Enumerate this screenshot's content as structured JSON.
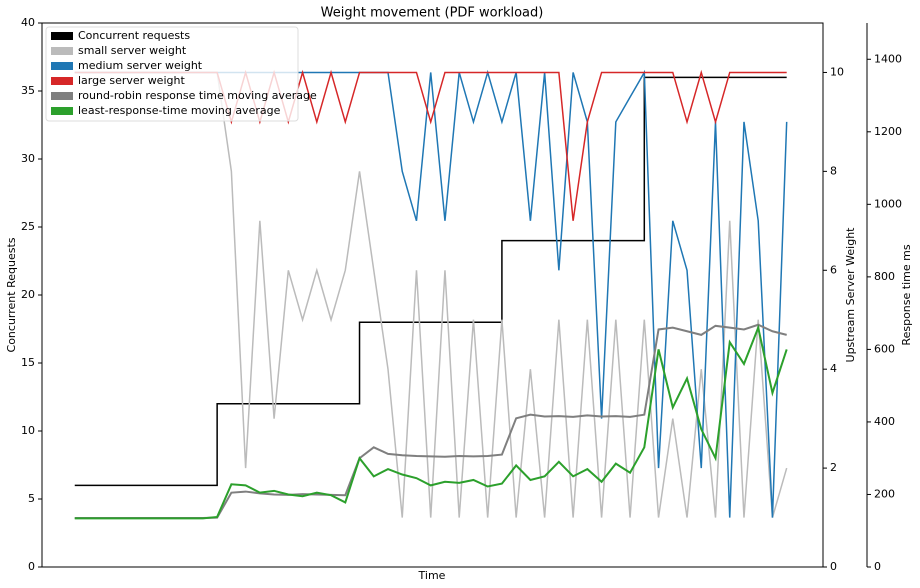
{
  "chart_data": {
    "type": "line",
    "title": "Weight movement (PDF workload)",
    "xlabel": "Time",
    "ylabel": "Concurrent Requests",
    "y2label": "Upstream Server Weight",
    "y3label": "Response time ms",
    "xlim": [
      -4.6,
      105.1
    ],
    "ylim": [
      0,
      40
    ],
    "yticks": [
      0,
      5,
      10,
      15,
      20,
      25,
      30,
      35,
      40
    ],
    "y2lim": [
      0,
      11
    ],
    "y2ticks": [
      0,
      2,
      4,
      6,
      8,
      10
    ],
    "y3lim": [
      0,
      1500
    ],
    "y3ticks": [
      0,
      200,
      400,
      600,
      800,
      1000,
      1200,
      1400
    ],
    "legend": "upper left",
    "x": [
      0,
      2,
      4,
      6,
      8,
      10,
      12,
      14,
      16,
      18,
      20,
      22,
      24,
      26,
      28,
      30,
      32,
      34,
      36,
      38,
      40,
      42,
      44,
      46,
      48,
      50,
      52,
      54,
      56,
      58,
      60,
      62,
      64,
      66,
      68,
      70,
      72,
      74,
      76,
      78,
      80,
      82,
      84,
      86,
      88,
      90,
      92,
      94,
      96,
      98,
      100
    ],
    "series": [
      {
        "name": "Concurrent requests",
        "color": "#000000",
        "axis": "y",
        "x": [
          0,
          20,
          20,
          40,
          40,
          60,
          60,
          80,
          80,
          100
        ],
        "values": [
          6,
          6,
          12,
          12,
          18,
          18,
          24,
          24,
          36,
          36
        ]
      },
      {
        "name": "small server weight",
        "color": "#bbbbbb",
        "axis": "y2",
        "values": [
          10,
          10,
          10,
          10,
          10,
          10,
          10,
          10,
          10,
          10,
          10,
          8,
          2,
          7,
          3,
          6,
          5,
          6,
          5,
          6,
          8,
          6,
          4,
          1,
          6,
          1,
          6,
          1,
          5,
          1,
          5,
          1,
          4,
          1,
          5,
          1,
          5,
          1,
          5,
          1,
          5,
          1,
          3,
          1,
          4,
          1,
          7,
          1,
          5,
          1,
          2
        ]
      },
      {
        "name": "medium server weight",
        "color": "#1f77b4",
        "axis": "y2",
        "values": [
          10,
          10,
          10,
          10,
          10,
          10,
          10,
          10,
          10,
          10,
          10,
          10,
          10,
          10,
          10,
          10,
          10,
          10,
          10,
          10,
          10,
          10,
          10,
          8,
          7,
          10,
          7,
          10,
          9,
          10,
          9,
          10,
          7,
          10,
          6,
          10,
          9,
          3,
          9,
          9.5,
          10,
          2,
          7,
          6,
          2,
          9,
          1,
          9,
          7,
          1,
          9
        ]
      },
      {
        "name": "large server weight",
        "color": "#d62728",
        "axis": "y2",
        "values": [
          10,
          10,
          10,
          10,
          10,
          10,
          10,
          10,
          10,
          10,
          10,
          9,
          10,
          9,
          10,
          9,
          10,
          9,
          10,
          9,
          10,
          10,
          10,
          10,
          10,
          9,
          10,
          10,
          10,
          10,
          10,
          10,
          10,
          10,
          10,
          7,
          9,
          10,
          10,
          10,
          10,
          10,
          10,
          9,
          10,
          9,
          10,
          10,
          10,
          10,
          10
        ]
      },
      {
        "name": "round-robin response time moving average",
        "color": "#7f7f7f",
        "axis": "y3",
        "values": [
          135,
          135,
          135,
          135,
          135,
          135,
          135,
          135,
          135,
          135,
          136,
          205,
          208,
          203,
          200,
          199,
          201,
          200,
          199,
          198,
          300,
          330,
          312,
          308,
          306,
          305,
          304,
          306,
          305,
          306,
          310,
          410,
          420,
          415,
          416,
          414,
          418,
          415,
          416,
          414,
          420,
          655,
          660,
          650,
          640,
          665,
          660,
          655,
          668,
          650,
          640
        ]
      },
      {
        "name": "least-response-time moving average",
        "color": "#2ca02c",
        "axis": "y3",
        "values": [
          134,
          134,
          134,
          134,
          134,
          134,
          134,
          134,
          134,
          134,
          138,
          228,
          225,
          205,
          210,
          200,
          195,
          205,
          198,
          178,
          300,
          250,
          270,
          255,
          245,
          225,
          235,
          232,
          240,
          222,
          230,
          280,
          240,
          250,
          290,
          250,
          270,
          235,
          285,
          260,
          330,
          600,
          440,
          520,
          380,
          300,
          620,
          560,
          660,
          480,
          600
        ]
      }
    ]
  }
}
